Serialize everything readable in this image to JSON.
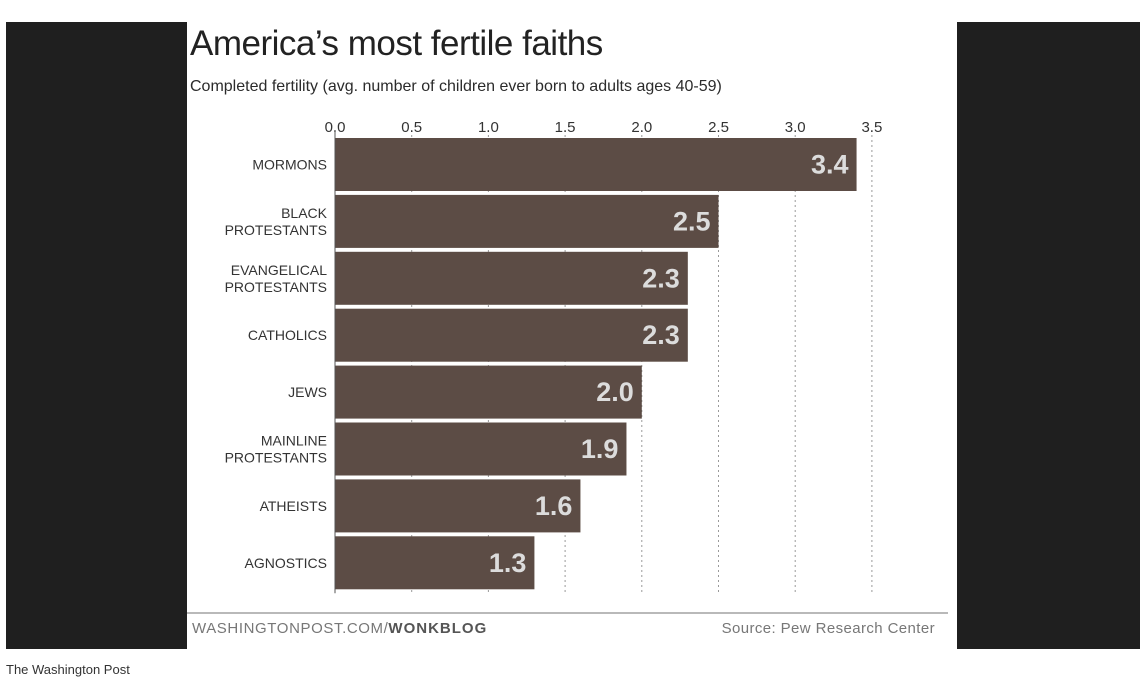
{
  "chart_data": {
    "type": "bar",
    "orientation": "horizontal",
    "title": "America’s most fertile faiths",
    "subtitle": "Completed fertility (avg. number of children ever born to adults ages 40-59)",
    "categories": [
      [
        "MORMONS"
      ],
      [
        "BLACK",
        "PROTESTANTS"
      ],
      [
        "EVANGELICAL",
        "PROTESTANTS"
      ],
      [
        "CATHOLICS"
      ],
      [
        "JEWS"
      ],
      [
        "MAINLINE",
        "PROTESTANTS"
      ],
      [
        "ATHEISTS"
      ],
      [
        "AGNOSTICS"
      ]
    ],
    "values": [
      3.4,
      2.5,
      2.3,
      2.3,
      2.0,
      1.9,
      1.6,
      1.3
    ],
    "value_labels": [
      "3.4",
      "2.5",
      "2.3",
      "2.3",
      "2.0",
      "1.9",
      "1.6",
      "1.3"
    ],
    "xlim": [
      0,
      3.5
    ],
    "xticks": [
      0,
      0.5,
      1,
      1.5,
      2,
      2.5,
      3,
      3.5
    ],
    "xtick_labels": [
      "0.0",
      "0.5",
      "1.0",
      "1.5",
      "2.0",
      "2.5",
      "3.0",
      "3.5"
    ],
    "grid": true,
    "bar_color": "#5c4c45"
  },
  "footer": {
    "site": "WASHINGTONPOST.COM/",
    "blog": "WONKBLOG",
    "source": "Source: Pew Research Center"
  },
  "caption": "The Washington Post"
}
